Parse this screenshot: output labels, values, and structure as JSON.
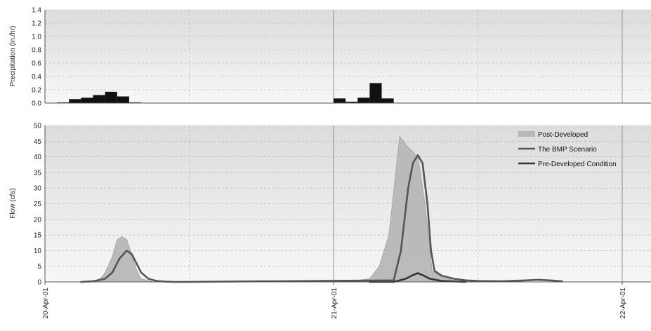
{
  "chart_data": [
    {
      "type": "bar",
      "ylabel": "Precipitation (in./hr)",
      "ylim": [
        0,
        1.4
      ],
      "yticks": [
        "0.0",
        "0.2",
        "0.4",
        "0.6",
        "0.8",
        "1.0",
        "1.2",
        "1.4"
      ],
      "xlim_hours": [
        0,
        48
      ],
      "grid": true,
      "bar_width_hours": 1,
      "bar_color": "#111111",
      "bars": [
        {
          "x": 1,
          "y": 0.01
        },
        {
          "x": 2,
          "y": 0.06
        },
        {
          "x": 3,
          "y": 0.08
        },
        {
          "x": 4,
          "y": 0.12
        },
        {
          "x": 5,
          "y": 0.17
        },
        {
          "x": 6,
          "y": 0.1
        },
        {
          "x": 7,
          "y": 0.01
        },
        {
          "x": 24,
          "y": 0.07
        },
        {
          "x": 25,
          "y": 0.02
        },
        {
          "x": 26,
          "y": 0.08
        },
        {
          "x": 27,
          "y": 0.3
        },
        {
          "x": 28,
          "y": 0.07
        }
      ]
    },
    {
      "type": "line",
      "ylabel": "Flow (cfs)",
      "ylim": [
        0,
        50
      ],
      "yticks": [
        "0",
        "5",
        "10",
        "15",
        "20",
        "25",
        "30",
        "35",
        "40",
        "45",
        "50"
      ],
      "xlim_hours": [
        0,
        48
      ],
      "x_tick_labels": [
        "20-Apr-01",
        "21-Apr-01",
        "22-Apr-01"
      ],
      "x_tick_hours": [
        0,
        24,
        48
      ],
      "grid": true,
      "legend_position": "top-right",
      "series": [
        {
          "name": "Post-Developed",
          "style": "area",
          "color": "#b8b8b8",
          "x": [
            3.0,
            4.0,
            4.6,
            5.0,
            5.6,
            6.0,
            6.4,
            6.8,
            7.2,
            7.6,
            8.0,
            9.0,
            25.0,
            26.0,
            27.0,
            27.8,
            28.6,
            29.5,
            30.2,
            31.0,
            31.6,
            32.2,
            33.0,
            34.0,
            35.0
          ],
          "y": [
            0,
            0.3,
            1.0,
            3.0,
            8.0,
            13.5,
            14.5,
            13.5,
            9.0,
            4.0,
            1.0,
            0,
            0,
            0.5,
            1.0,
            5.0,
            15.0,
            46.5,
            43.0,
            40.0,
            25.0,
            3.5,
            1.5,
            0.5,
            0
          ]
        },
        {
          "name": "The BMP Scenario",
          "style": "line",
          "color": "#555555",
          "x": [
            3.0,
            4.0,
            5.0,
            5.6,
            6.2,
            6.8,
            7.2,
            7.6,
            8.0,
            8.6,
            9.3,
            10.0,
            10.8,
            11.5,
            29.0,
            29.6,
            30.2,
            30.6,
            31.0,
            31.4,
            31.8,
            32.1,
            32.4,
            33.0,
            34.0,
            35.0,
            36.0,
            38.0,
            40.0,
            41.0,
            42.0,
            43.0
          ],
          "y": [
            0,
            0.2,
            1.0,
            3.0,
            7.5,
            10.0,
            9.0,
            6.0,
            3.0,
            1.0,
            0.3,
            0.1,
            0,
            0,
            0.5,
            10.0,
            30.0,
            38.0,
            40.5,
            38.0,
            25.0,
            10.0,
            3.5,
            2.0,
            1.0,
            0.5,
            0.3,
            0.2,
            0.5,
            0.7,
            0.5,
            0.2
          ]
        },
        {
          "name": "Pre-Developed Condition",
          "style": "line",
          "color": "#333333",
          "x": [
            27.0,
            29.0,
            30.0,
            30.5,
            31.0,
            31.5,
            32.0,
            33.0,
            35.0
          ],
          "y": [
            0,
            0,
            1.0,
            2.0,
            2.8,
            2.0,
            1.0,
            0.3,
            0
          ]
        }
      ]
    }
  ]
}
